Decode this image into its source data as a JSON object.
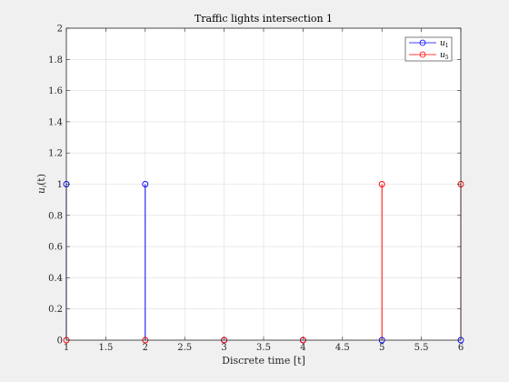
{
  "chart_data": {
    "type": "stem",
    "title": "Traffic lights intersection 1",
    "xlabel": "Discrete time [t]",
    "ylabel": {
      "base": "u",
      "subscript": "i",
      "suffix": "(t)"
    },
    "xlim": [
      1,
      6
    ],
    "ylim": [
      0,
      2
    ],
    "xticks": [
      "1",
      "1.5",
      "2",
      "2.5",
      "3",
      "3.5",
      "4",
      "4.5",
      "5",
      "5.5",
      "6"
    ],
    "yticks": [
      "0",
      "0.2",
      "0.4",
      "0.6",
      "0.8",
      "1",
      "1.2",
      "1.4",
      "1.6",
      "1.8",
      "2"
    ],
    "grid": true,
    "legend_position": "top-right",
    "series": [
      {
        "legend_base": "u",
        "legend_sub": "1",
        "color": "#0000ff",
        "x": [
          1,
          2,
          3,
          4,
          5,
          6
        ],
        "y": [
          1,
          1,
          0,
          0,
          0,
          0
        ]
      },
      {
        "legend_base": "u",
        "legend_sub": "5",
        "color": "#ff0000",
        "x": [
          1,
          2,
          3,
          4,
          5,
          6
        ],
        "y": [
          0,
          0,
          0,
          0,
          1,
          1
        ]
      }
    ]
  }
}
